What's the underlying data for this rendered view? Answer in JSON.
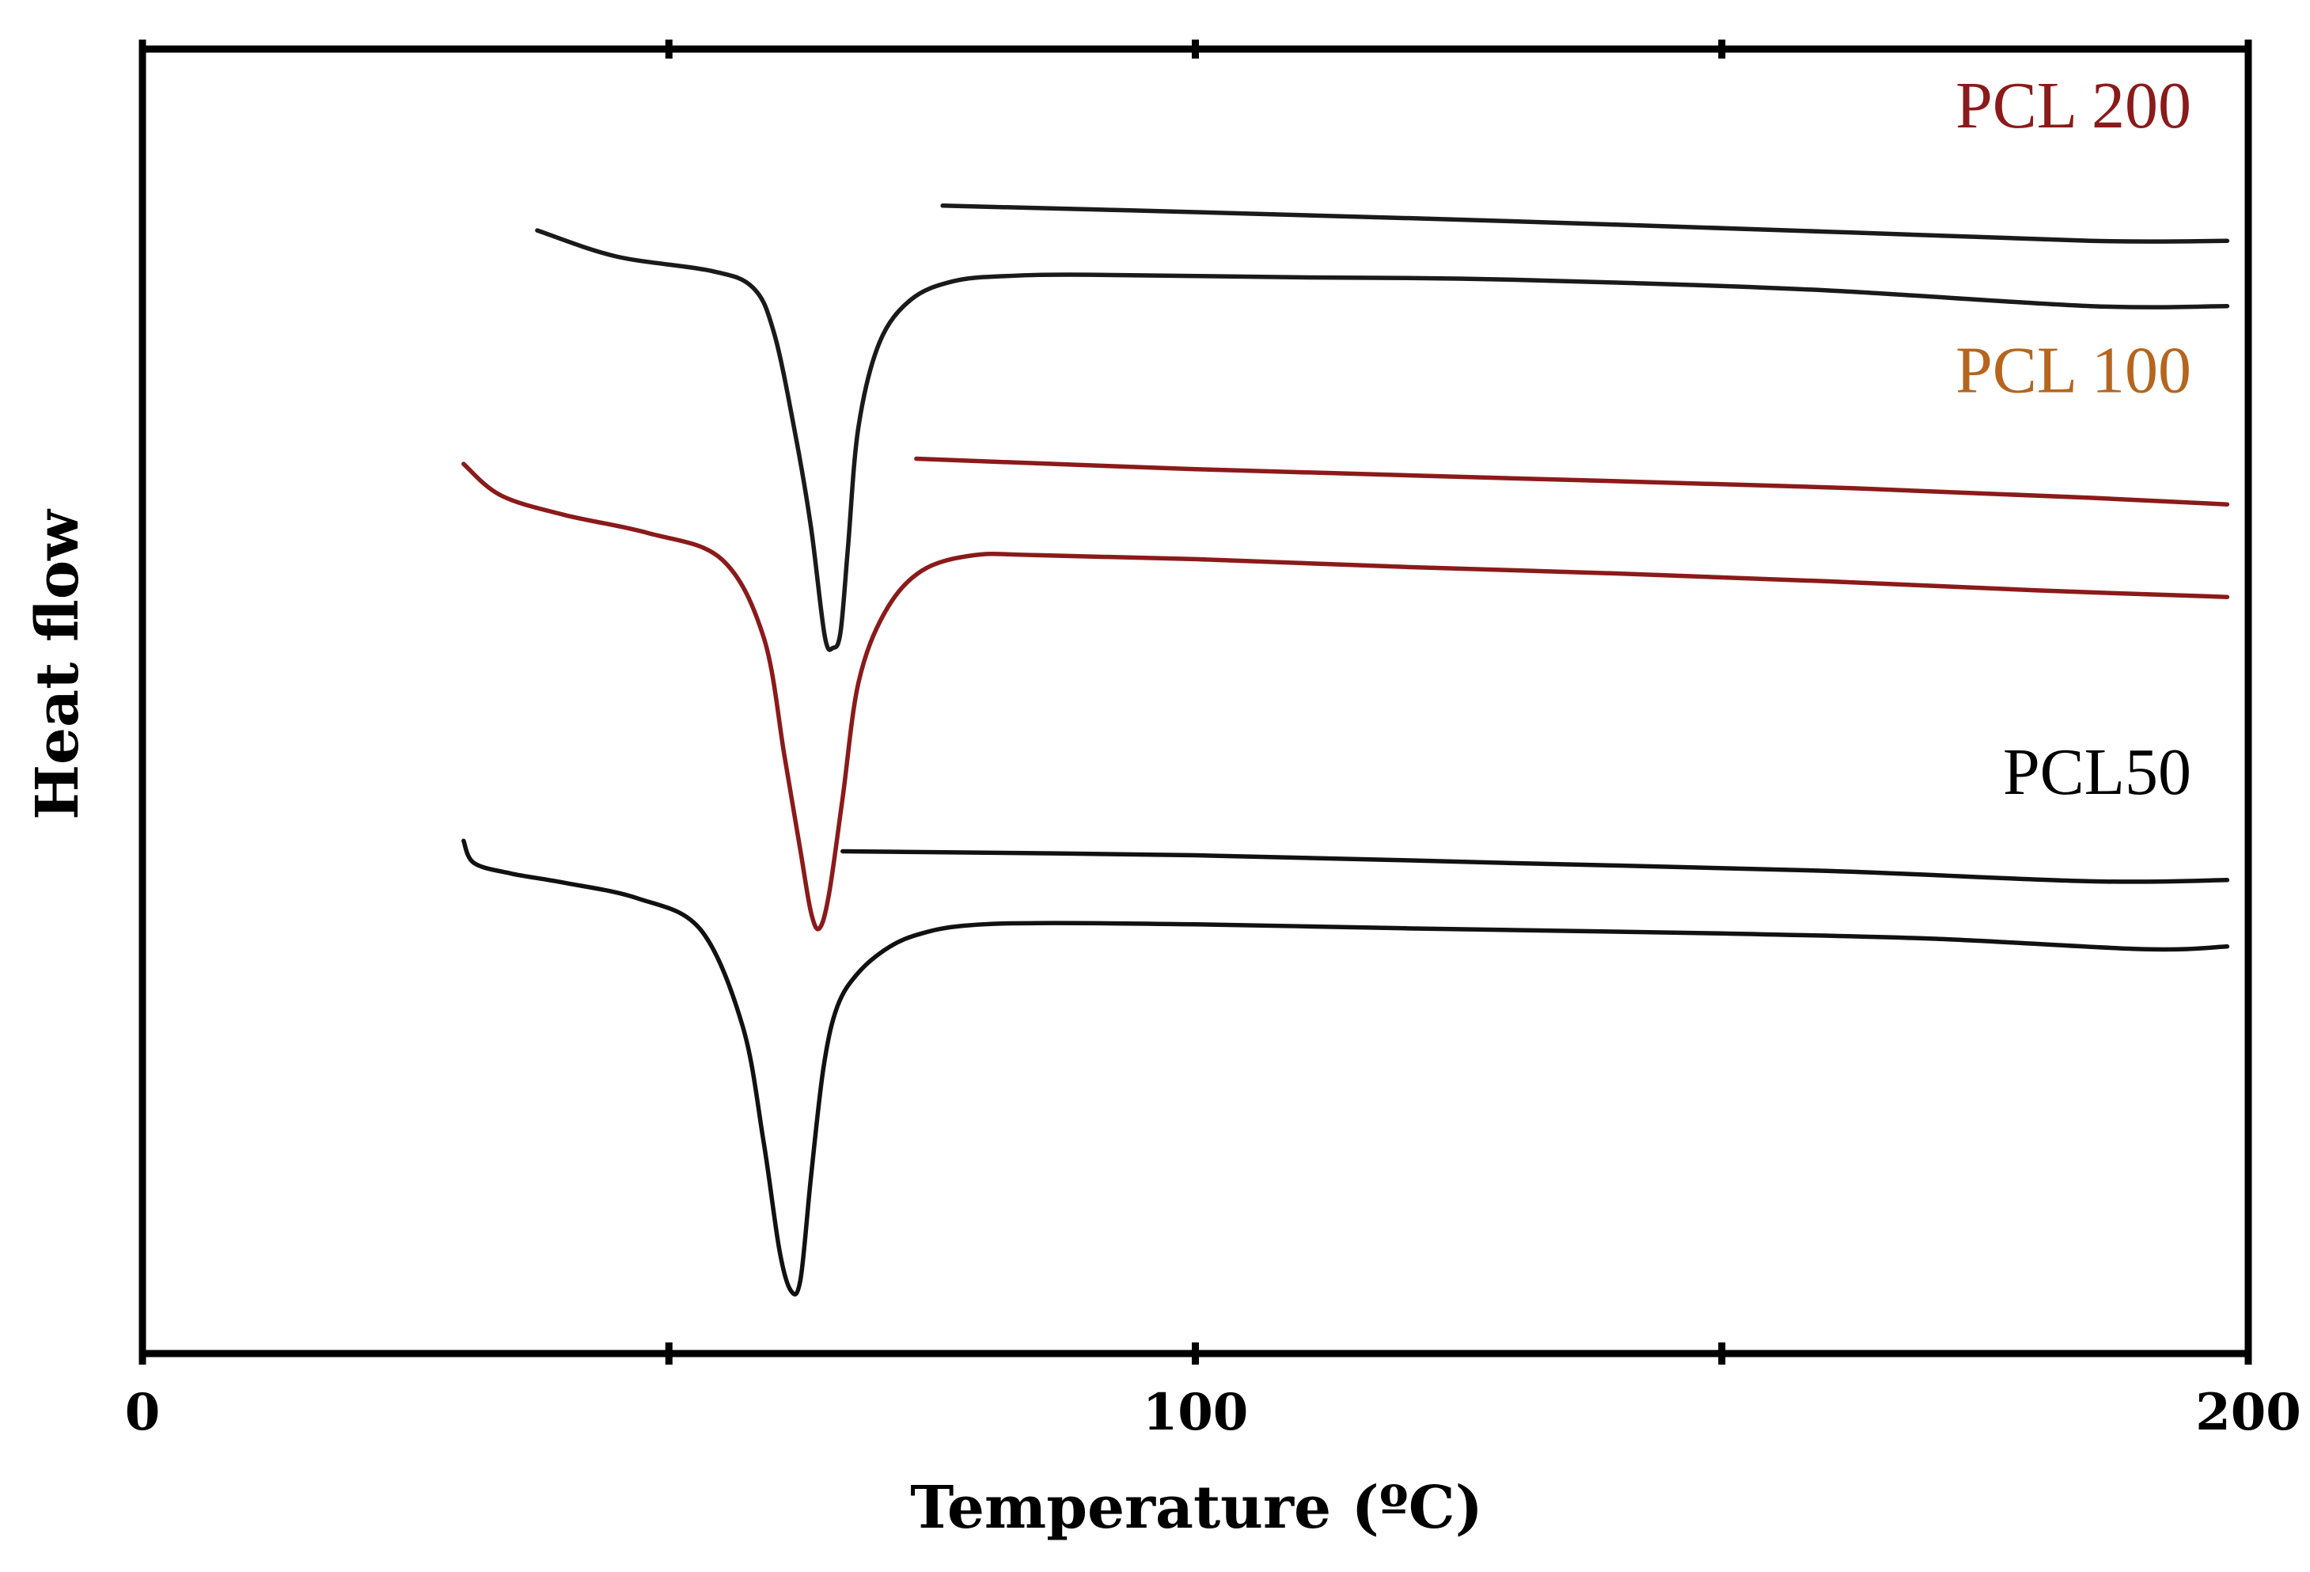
{
  "chart_data": {
    "type": "line",
    "title": "",
    "xlabel": "Temperature (ºC)",
    "ylabel": "Heat flow",
    "xlim": [
      0,
      200
    ],
    "ylim": [
      0,
      100
    ],
    "x_ticks": [
      0,
      100,
      200
    ],
    "x_minor_ticks": [
      50,
      150
    ],
    "grid": false,
    "legend": "inline-labels",
    "series": [
      {
        "name": "PCL 200",
        "color": "#1a1a1a",
        "label_color": "#8b1a1a",
        "heating": {
          "x": [
            37.5,
            45,
            54,
            58,
            60,
            62,
            63.5,
            64.8,
            65.6,
            66.3,
            67,
            68,
            70,
            73,
            77,
            82,
            90,
            110,
            125,
            140,
            160,
            185,
            198
          ],
          "y": [
            86.1,
            84.1,
            83.0,
            81.7,
            78.2,
            70.5,
            63.3,
            55.0,
            54.1,
            55.3,
            61.7,
            71.0,
            77.5,
            80.8,
            82.2,
            82.6,
            82.7,
            82.5,
            82.4,
            82.1,
            81.5,
            80.3,
            80.3
          ]
        },
        "cooling": {
          "x": [
            76,
            100,
            130,
            160,
            185,
            198
          ],
          "y": [
            88.0,
            87.5,
            86.8,
            86.0,
            85.3,
            85.3
          ]
        }
      },
      {
        "name": "PCL 100",
        "color": "#8b1a1a",
        "label_color": "#b5651d",
        "heating": {
          "x": [
            30.5,
            34,
            40,
            48,
            55,
            59,
            61,
            62.5,
            63.5,
            64.3,
            65.2,
            66.5,
            68,
            70.5,
            74,
            79,
            85,
            100,
            120,
            140,
            160,
            180,
            198
          ],
          "y": [
            68.2,
            65.8,
            64.3,
            62.9,
            60.9,
            54.9,
            45.7,
            38.5,
            33.8,
            32.6,
            35.2,
            42.6,
            51.4,
            56.8,
            60.0,
            61.2,
            61.2,
            60.9,
            60.3,
            59.8,
            59.2,
            58.5,
            58.0
          ]
        },
        "cooling": {
          "x": [
            73.5,
            100,
            130,
            160,
            185,
            198
          ],
          "y": [
            68.6,
            67.8,
            67.1,
            66.4,
            65.6,
            65.1
          ]
        }
      },
      {
        "name": "PCL50",
        "color": "#111111",
        "label_color": "#000000",
        "heating": {
          "x": [
            30.5,
            31.5,
            35,
            40,
            47,
            53,
            57,
            59,
            60.5,
            61.6,
            62.5,
            63.5,
            64.7,
            66,
            68,
            71,
            74,
            78,
            85,
            100,
            120,
            135,
            150,
            170,
            190,
            198
          ],
          "y": [
            39.3,
            37.6,
            36.8,
            36.1,
            34.9,
            32.5,
            25.1,
            16.2,
            7.9,
            4.8,
            5.7,
            13.6,
            22.0,
            26.6,
            29.2,
            31.2,
            32.2,
            32.8,
            33.0,
            32.9,
            32.6,
            32.4,
            32.2,
            31.8,
            31.0,
            31.2
          ]
        },
        "cooling": {
          "x": [
            66.5,
            100,
            130,
            160,
            185,
            198
          ],
          "y": [
            38.5,
            38.2,
            37.6,
            37.0,
            36.2,
            36.3
          ]
        }
      }
    ],
    "annotations": [
      {
        "text": "PCL 200",
        "series": "PCL 200"
      },
      {
        "text": "PCL 100",
        "series": "PCL 100"
      },
      {
        "text": "PCL50",
        "series": "PCL50"
      }
    ]
  }
}
